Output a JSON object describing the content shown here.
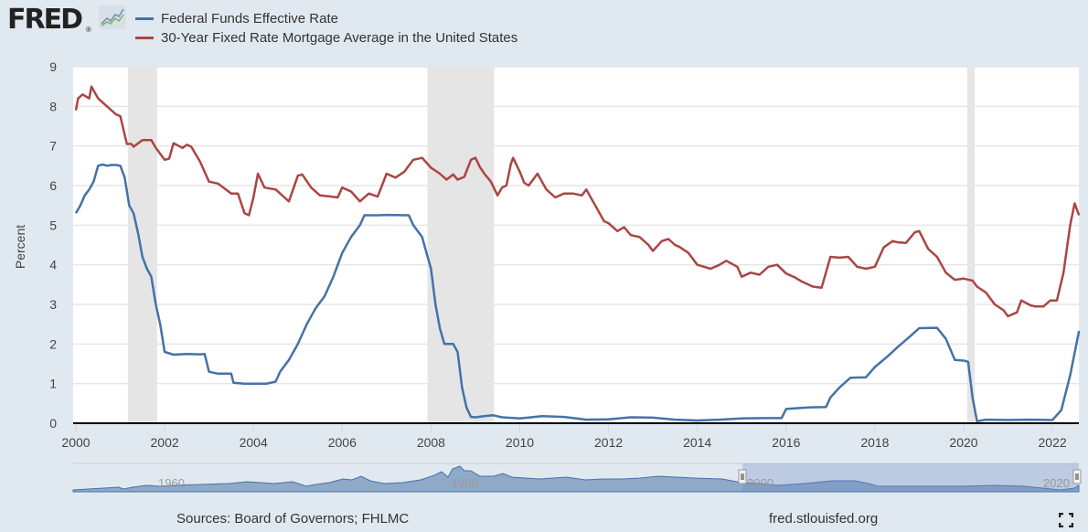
{
  "logo": {
    "text": "FRED",
    "mark": "®",
    "icon": "chart-line-icon"
  },
  "footer": {
    "sources": "Sources: Board of Governors; FHLMC",
    "url": "fred.stlouisfed.org",
    "fullscreen_icon": "fullscreen-icon"
  },
  "colors": {
    "series1": "#4572a7",
    "series2": "#aa4643",
    "background": "#e1e9f0",
    "plot_bg": "#ffffff",
    "recession": "#e5e5e5",
    "navigator_fill": "#8fa9c9",
    "navigator_mask": "rgba(102,133,194,0.3)"
  },
  "chart_data": {
    "type": "line",
    "title": "",
    "xlabel": "",
    "ylabel": "Percent",
    "xlim": [
      2000,
      2022.6
    ],
    "ylim": [
      0,
      9
    ],
    "yticks": [
      "0",
      "1",
      "2",
      "3",
      "4",
      "5",
      "6",
      "7",
      "8",
      "9"
    ],
    "xticks": [
      "2000",
      "2002",
      "2004",
      "2006",
      "2008",
      "2010",
      "2012",
      "2014",
      "2016",
      "2018",
      "2020",
      "2022"
    ],
    "grid": true,
    "legend_position": "top-left",
    "recessions": [
      [
        2001.17,
        2001.83
      ],
      [
        2007.92,
        2009.42
      ],
      [
        2020.08,
        2020.25
      ]
    ],
    "navigator": {
      "labels": [
        "1960",
        "1980",
        "2000",
        "2020"
      ],
      "selected_range": [
        "2000",
        "2022"
      ]
    },
    "series": [
      {
        "name": "Federal Funds Effective Rate",
        "points": [
          [
            2000.0,
            5.3
          ],
          [
            2000.1,
            5.5
          ],
          [
            2000.2,
            5.75
          ],
          [
            2000.3,
            5.9
          ],
          [
            2000.4,
            6.1
          ],
          [
            2000.5,
            6.5
          ],
          [
            2000.6,
            6.53
          ],
          [
            2000.7,
            6.5
          ],
          [
            2000.8,
            6.52
          ],
          [
            2000.9,
            6.52
          ],
          [
            2001.0,
            6.5
          ],
          [
            2001.1,
            6.2
          ],
          [
            2001.2,
            5.5
          ],
          [
            2001.3,
            5.3
          ],
          [
            2001.4,
            4.8
          ],
          [
            2001.5,
            4.2
          ],
          [
            2001.6,
            3.9
          ],
          [
            2001.7,
            3.7
          ],
          [
            2001.8,
            3.0
          ],
          [
            2001.9,
            2.5
          ],
          [
            2002.0,
            1.8
          ],
          [
            2002.2,
            1.73
          ],
          [
            2002.5,
            1.75
          ],
          [
            2002.8,
            1.74
          ],
          [
            2002.9,
            1.75
          ],
          [
            2003.0,
            1.3
          ],
          [
            2003.2,
            1.25
          ],
          [
            2003.5,
            1.25
          ],
          [
            2003.55,
            1.02
          ],
          [
            2003.8,
            1.0
          ],
          [
            2004.0,
            1.0
          ],
          [
            2004.3,
            1.0
          ],
          [
            2004.5,
            1.05
          ],
          [
            2004.6,
            1.3
          ],
          [
            2004.8,
            1.6
          ],
          [
            2005.0,
            2.0
          ],
          [
            2005.2,
            2.5
          ],
          [
            2005.4,
            2.9
          ],
          [
            2005.6,
            3.2
          ],
          [
            2005.8,
            3.7
          ],
          [
            2006.0,
            4.3
          ],
          [
            2006.2,
            4.7
          ],
          [
            2006.4,
            5.0
          ],
          [
            2006.5,
            5.25
          ],
          [
            2006.8,
            5.25
          ],
          [
            2007.0,
            5.26
          ],
          [
            2007.5,
            5.25
          ],
          [
            2007.6,
            5.0
          ],
          [
            2007.8,
            4.7
          ],
          [
            2007.9,
            4.3
          ],
          [
            2008.0,
            3.9
          ],
          [
            2008.1,
            3.0
          ],
          [
            2008.2,
            2.4
          ],
          [
            2008.3,
            2.0
          ],
          [
            2008.5,
            2.0
          ],
          [
            2008.6,
            1.8
          ],
          [
            2008.7,
            0.9
          ],
          [
            2008.8,
            0.4
          ],
          [
            2008.9,
            0.16
          ],
          [
            2009.0,
            0.15
          ],
          [
            2009.2,
            0.18
          ],
          [
            2009.4,
            0.2
          ],
          [
            2009.6,
            0.15
          ],
          [
            2010.0,
            0.12
          ],
          [
            2010.5,
            0.18
          ],
          [
            2011.0,
            0.16
          ],
          [
            2011.5,
            0.09
          ],
          [
            2012.0,
            0.1
          ],
          [
            2012.5,
            0.15
          ],
          [
            2013.0,
            0.14
          ],
          [
            2013.5,
            0.09
          ],
          [
            2014.0,
            0.07
          ],
          [
            2014.5,
            0.09
          ],
          [
            2015.0,
            0.12
          ],
          [
            2015.5,
            0.13
          ],
          [
            2015.9,
            0.13
          ],
          [
            2016.0,
            0.36
          ],
          [
            2016.5,
            0.4
          ],
          [
            2016.9,
            0.41
          ],
          [
            2017.0,
            0.65
          ],
          [
            2017.2,
            0.9
          ],
          [
            2017.45,
            1.15
          ],
          [
            2017.8,
            1.16
          ],
          [
            2018.0,
            1.42
          ],
          [
            2018.3,
            1.7
          ],
          [
            2018.5,
            1.91
          ],
          [
            2018.8,
            2.2
          ],
          [
            2019.0,
            2.4
          ],
          [
            2019.4,
            2.41
          ],
          [
            2019.6,
            2.13
          ],
          [
            2019.8,
            1.6
          ],
          [
            2020.0,
            1.58
          ],
          [
            2020.1,
            1.55
          ],
          [
            2020.2,
            0.65
          ],
          [
            2020.3,
            0.05
          ],
          [
            2020.5,
            0.09
          ],
          [
            2021.0,
            0.08
          ],
          [
            2021.5,
            0.09
          ],
          [
            2022.0,
            0.08
          ],
          [
            2022.2,
            0.33
          ],
          [
            2022.4,
            1.21
          ],
          [
            2022.6,
            2.33
          ]
        ]
      },
      {
        "name": "30-Year Fixed Rate Mortgage Average in the United States",
        "points": [
          [
            2000.0,
            7.9
          ],
          [
            2000.05,
            8.2
          ],
          [
            2000.15,
            8.3
          ],
          [
            2000.3,
            8.2
          ],
          [
            2000.35,
            8.5
          ],
          [
            2000.5,
            8.2
          ],
          [
            2000.7,
            8.0
          ],
          [
            2000.9,
            7.8
          ],
          [
            2001.0,
            7.75
          ],
          [
            2001.15,
            7.05
          ],
          [
            2001.25,
            7.05
          ],
          [
            2001.3,
            6.98
          ],
          [
            2001.5,
            7.15
          ],
          [
            2001.7,
            7.15
          ],
          [
            2001.8,
            6.95
          ],
          [
            2002.0,
            6.65
          ],
          [
            2002.1,
            6.68
          ],
          [
            2002.2,
            7.07
          ],
          [
            2002.4,
            6.95
          ],
          [
            2002.5,
            7.03
          ],
          [
            2002.6,
            6.98
          ],
          [
            2002.8,
            6.6
          ],
          [
            2003.0,
            6.1
          ],
          [
            2003.2,
            6.05
          ],
          [
            2003.5,
            5.8
          ],
          [
            2003.65,
            5.8
          ],
          [
            2003.8,
            5.3
          ],
          [
            2003.9,
            5.25
          ],
          [
            2004.0,
            5.7
          ],
          [
            2004.1,
            6.3
          ],
          [
            2004.25,
            5.95
          ],
          [
            2004.5,
            5.9
          ],
          [
            2004.7,
            5.7
          ],
          [
            2004.8,
            5.6
          ],
          [
            2005.0,
            6.25
          ],
          [
            2005.1,
            6.28
          ],
          [
            2005.3,
            5.95
          ],
          [
            2005.5,
            5.75
          ],
          [
            2005.7,
            5.73
          ],
          [
            2005.9,
            5.7
          ],
          [
            2006.0,
            5.95
          ],
          [
            2006.2,
            5.85
          ],
          [
            2006.4,
            5.6
          ],
          [
            2006.6,
            5.8
          ],
          [
            2006.8,
            5.72
          ],
          [
            2007.0,
            6.3
          ],
          [
            2007.2,
            6.2
          ],
          [
            2007.4,
            6.35
          ],
          [
            2007.6,
            6.65
          ],
          [
            2007.8,
            6.7
          ],
          [
            2008.0,
            6.45
          ],
          [
            2008.2,
            6.3
          ],
          [
            2008.35,
            6.15
          ],
          [
            2008.5,
            6.28
          ],
          [
            2008.6,
            6.15
          ],
          [
            2008.75,
            6.22
          ],
          [
            2008.9,
            6.65
          ],
          [
            2009.0,
            6.7
          ],
          [
            2009.1,
            6.47
          ],
          [
            2009.2,
            6.3
          ],
          [
            2009.35,
            6.1
          ],
          [
            2009.5,
            5.75
          ],
          [
            2009.6,
            5.95
          ],
          [
            2009.7,
            6.0
          ],
          [
            2009.8,
            6.55
          ],
          [
            2009.85,
            6.7
          ],
          [
            2010.0,
            6.35
          ],
          [
            2010.1,
            6.07
          ],
          [
            2010.2,
            6.0
          ],
          [
            2010.4,
            6.3
          ],
          [
            2010.6,
            5.9
          ],
          [
            2010.8,
            5.7
          ],
          [
            2011.0,
            5.8
          ],
          [
            2011.2,
            5.8
          ],
          [
            2011.4,
            5.75
          ],
          [
            2011.5,
            5.9
          ],
          [
            2011.7,
            5.5
          ],
          [
            2011.9,
            5.1
          ],
          [
            2012.0,
            5.05
          ],
          [
            2012.2,
            4.85
          ],
          [
            2012.35,
            4.95
          ],
          [
            2012.5,
            4.75
          ],
          [
            2012.7,
            4.7
          ],
          [
            2012.9,
            4.5
          ],
          [
            2013.0,
            4.35
          ],
          [
            2013.2,
            4.6
          ],
          [
            2013.35,
            4.65
          ],
          [
            2013.5,
            4.5
          ],
          [
            2013.6,
            4.45
          ],
          [
            2013.8,
            4.3
          ],
          [
            2014.0,
            4.0
          ],
          [
            2014.3,
            3.9
          ],
          [
            2014.5,
            4.0
          ],
          [
            2014.65,
            4.1
          ],
          [
            2014.9,
            3.95
          ],
          [
            2015.0,
            3.7
          ],
          [
            2015.2,
            3.8
          ],
          [
            2015.4,
            3.75
          ],
          [
            2015.6,
            3.95
          ],
          [
            2015.8,
            4.0
          ],
          [
            2016.0,
            3.78
          ],
          [
            2016.2,
            3.68
          ],
          [
            2016.35,
            3.58
          ],
          [
            2016.6,
            3.45
          ],
          [
            2016.8,
            3.42
          ],
          [
            2017.0,
            4.2
          ],
          [
            2017.2,
            4.18
          ],
          [
            2017.4,
            4.2
          ],
          [
            2017.6,
            3.95
          ],
          [
            2017.8,
            3.9
          ],
          [
            2018.0,
            3.95
          ],
          [
            2018.2,
            4.44
          ],
          [
            2018.4,
            4.6
          ],
          [
            2018.5,
            4.57
          ],
          [
            2018.7,
            4.55
          ],
          [
            2018.9,
            4.82
          ],
          [
            2019.0,
            4.85
          ],
          [
            2019.2,
            4.4
          ],
          [
            2019.4,
            4.2
          ],
          [
            2019.6,
            3.8
          ],
          [
            2019.8,
            3.62
          ],
          [
            2020.0,
            3.65
          ],
          [
            2020.2,
            3.6
          ],
          [
            2020.3,
            3.45
          ],
          [
            2020.5,
            3.3
          ],
          [
            2020.7,
            3.0
          ],
          [
            2020.9,
            2.85
          ],
          [
            2021.0,
            2.7
          ],
          [
            2021.2,
            2.8
          ],
          [
            2021.3,
            3.1
          ],
          [
            2021.5,
            2.98
          ],
          [
            2021.6,
            2.95
          ],
          [
            2021.8,
            2.95
          ],
          [
            2021.95,
            3.1
          ],
          [
            2022.1,
            3.1
          ],
          [
            2022.25,
            3.8
          ],
          [
            2022.4,
            5.0
          ],
          [
            2022.5,
            5.55
          ],
          [
            2022.6,
            5.25
          ]
        ]
      }
    ]
  }
}
